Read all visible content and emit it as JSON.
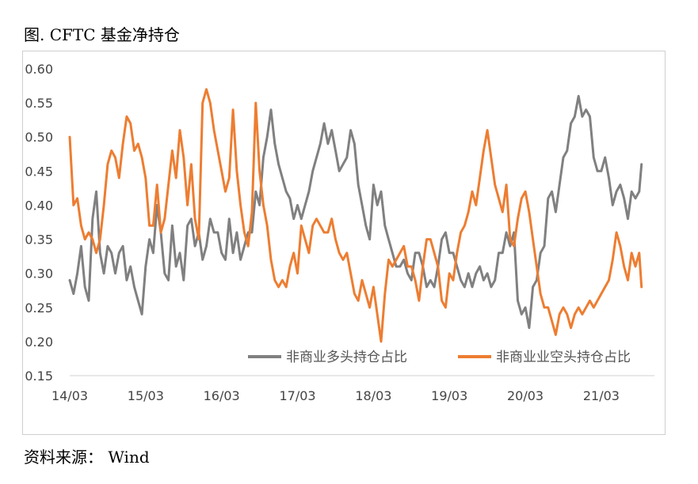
{
  "figure_title": "图. CFTC 基金净持仓",
  "source": "资料来源：  Wind",
  "chart_data": {
    "type": "line",
    "title": "",
    "xlabel": "",
    "ylabel": "",
    "ylim": [
      0.15,
      0.6
    ],
    "xlim": [
      14.0,
      21.7
    ],
    "yticks": [
      "0.60",
      "0.55",
      "0.50",
      "0.45",
      "0.40",
      "0.35",
      "0.30",
      "0.25",
      "0.20",
      "0.15"
    ],
    "xticks": [
      {
        "v": 14.0,
        "label": "14/03"
      },
      {
        "v": 15.0,
        "label": "15/03"
      },
      {
        "v": 16.0,
        "label": "16/03"
      },
      {
        "v": 17.0,
        "label": "17/03"
      },
      {
        "v": 18.0,
        "label": "18/03"
      },
      {
        "v": 19.0,
        "label": "19/03"
      },
      {
        "v": 20.0,
        "label": "20/03"
      },
      {
        "v": 21.0,
        "label": "21/03"
      }
    ],
    "grid": false,
    "legend_position": "bottom-right",
    "series": [
      {
        "name": "非商业多头持仓占比",
        "color": "#808080",
        "points": [
          [
            14.0,
            0.29
          ],
          [
            14.05,
            0.27
          ],
          [
            14.1,
            0.3
          ],
          [
            14.15,
            0.34
          ],
          [
            14.2,
            0.28
          ],
          [
            14.25,
            0.26
          ],
          [
            14.3,
            0.38
          ],
          [
            14.35,
            0.42
          ],
          [
            14.4,
            0.33
          ],
          [
            14.45,
            0.3
          ],
          [
            14.5,
            0.34
          ],
          [
            14.55,
            0.33
          ],
          [
            14.6,
            0.3
          ],
          [
            14.65,
            0.33
          ],
          [
            14.7,
            0.34
          ],
          [
            14.75,
            0.29
          ],
          [
            14.8,
            0.31
          ],
          [
            14.85,
            0.28
          ],
          [
            14.9,
            0.26
          ],
          [
            14.95,
            0.24
          ],
          [
            15.0,
            0.31
          ],
          [
            15.05,
            0.35
          ],
          [
            15.1,
            0.33
          ],
          [
            15.15,
            0.4
          ],
          [
            15.2,
            0.36
          ],
          [
            15.25,
            0.3
          ],
          [
            15.3,
            0.29
          ],
          [
            15.35,
            0.37
          ],
          [
            15.4,
            0.31
          ],
          [
            15.45,
            0.33
          ],
          [
            15.5,
            0.29
          ],
          [
            15.55,
            0.37
          ],
          [
            15.6,
            0.38
          ],
          [
            15.65,
            0.34
          ],
          [
            15.7,
            0.36
          ],
          [
            15.75,
            0.32
          ],
          [
            15.8,
            0.34
          ],
          [
            15.85,
            0.38
          ],
          [
            15.9,
            0.36
          ],
          [
            15.95,
            0.36
          ],
          [
            16.0,
            0.33
          ],
          [
            16.05,
            0.32
          ],
          [
            16.1,
            0.38
          ],
          [
            16.15,
            0.33
          ],
          [
            16.2,
            0.36
          ],
          [
            16.25,
            0.32
          ],
          [
            16.3,
            0.34
          ],
          [
            16.35,
            0.36
          ],
          [
            16.4,
            0.36
          ],
          [
            16.45,
            0.42
          ],
          [
            16.5,
            0.4
          ],
          [
            16.55,
            0.47
          ],
          [
            16.6,
            0.5
          ],
          [
            16.65,
            0.54
          ],
          [
            16.7,
            0.49
          ],
          [
            16.75,
            0.46
          ],
          [
            16.8,
            0.44
          ],
          [
            16.85,
            0.42
          ],
          [
            16.9,
            0.41
          ],
          [
            16.95,
            0.38
          ],
          [
            17.0,
            0.4
          ],
          [
            17.05,
            0.38
          ],
          [
            17.1,
            0.4
          ],
          [
            17.15,
            0.42
          ],
          [
            17.2,
            0.45
          ],
          [
            17.25,
            0.47
          ],
          [
            17.3,
            0.49
          ],
          [
            17.35,
            0.52
          ],
          [
            17.4,
            0.49
          ],
          [
            17.45,
            0.51
          ],
          [
            17.5,
            0.48
          ],
          [
            17.55,
            0.45
          ],
          [
            17.6,
            0.46
          ],
          [
            17.65,
            0.47
          ],
          [
            17.7,
            0.51
          ],
          [
            17.75,
            0.49
          ],
          [
            17.8,
            0.43
          ],
          [
            17.85,
            0.4
          ],
          [
            17.9,
            0.37
          ],
          [
            17.95,
            0.35
          ],
          [
            18.0,
            0.43
          ],
          [
            18.05,
            0.4
          ],
          [
            18.1,
            0.42
          ],
          [
            18.15,
            0.37
          ],
          [
            18.2,
            0.35
          ],
          [
            18.25,
            0.33
          ],
          [
            18.3,
            0.31
          ],
          [
            18.35,
            0.31
          ],
          [
            18.4,
            0.32
          ],
          [
            18.45,
            0.3
          ],
          [
            18.5,
            0.29
          ],
          [
            18.55,
            0.33
          ],
          [
            18.6,
            0.33
          ],
          [
            18.65,
            0.31
          ],
          [
            18.7,
            0.28
          ],
          [
            18.75,
            0.29
          ],
          [
            18.8,
            0.28
          ],
          [
            18.85,
            0.31
          ],
          [
            18.9,
            0.35
          ],
          [
            18.95,
            0.36
          ],
          [
            19.0,
            0.33
          ],
          [
            19.05,
            0.33
          ],
          [
            19.1,
            0.31
          ],
          [
            19.15,
            0.29
          ],
          [
            19.2,
            0.28
          ],
          [
            19.25,
            0.3
          ],
          [
            19.3,
            0.28
          ],
          [
            19.35,
            0.3
          ],
          [
            19.4,
            0.31
          ],
          [
            19.45,
            0.29
          ],
          [
            19.5,
            0.3
          ],
          [
            19.55,
            0.28
          ],
          [
            19.6,
            0.29
          ],
          [
            19.65,
            0.33
          ],
          [
            19.7,
            0.33
          ],
          [
            19.75,
            0.36
          ],
          [
            19.8,
            0.34
          ],
          [
            19.85,
            0.36
          ],
          [
            19.9,
            0.26
          ],
          [
            19.95,
            0.24
          ],
          [
            20.0,
            0.25
          ],
          [
            20.05,
            0.22
          ],
          [
            20.1,
            0.28
          ],
          [
            20.15,
            0.29
          ],
          [
            20.2,
            0.33
          ],
          [
            20.25,
            0.34
          ],
          [
            20.3,
            0.41
          ],
          [
            20.35,
            0.42
          ],
          [
            20.4,
            0.39
          ],
          [
            20.45,
            0.43
          ],
          [
            20.5,
            0.47
          ],
          [
            20.55,
            0.48
          ],
          [
            20.6,
            0.52
          ],
          [
            20.65,
            0.53
          ],
          [
            20.7,
            0.56
          ],
          [
            20.75,
            0.53
          ],
          [
            20.8,
            0.54
          ],
          [
            20.85,
            0.53
          ],
          [
            20.9,
            0.47
          ],
          [
            20.95,
            0.45
          ],
          [
            21.0,
            0.45
          ],
          [
            21.05,
            0.47
          ],
          [
            21.1,
            0.44
          ],
          [
            21.15,
            0.4
          ],
          [
            21.2,
            0.42
          ],
          [
            21.25,
            0.43
          ],
          [
            21.3,
            0.41
          ],
          [
            21.35,
            0.38
          ],
          [
            21.4,
            0.42
          ],
          [
            21.45,
            0.41
          ],
          [
            21.5,
            0.42
          ],
          [
            21.53,
            0.46
          ]
        ]
      },
      {
        "name": "非商业业空头持仓占比",
        "color": "#ED7D31",
        "points": [
          [
            14.0,
            0.5
          ],
          [
            14.05,
            0.4
          ],
          [
            14.1,
            0.41
          ],
          [
            14.15,
            0.37
          ],
          [
            14.2,
            0.35
          ],
          [
            14.25,
            0.36
          ],
          [
            14.3,
            0.35
          ],
          [
            14.35,
            0.33
          ],
          [
            14.4,
            0.35
          ],
          [
            14.45,
            0.4
          ],
          [
            14.5,
            0.46
          ],
          [
            14.55,
            0.48
          ],
          [
            14.6,
            0.47
          ],
          [
            14.65,
            0.44
          ],
          [
            14.7,
            0.49
          ],
          [
            14.75,
            0.53
          ],
          [
            14.8,
            0.52
          ],
          [
            14.85,
            0.48
          ],
          [
            14.9,
            0.49
          ],
          [
            14.95,
            0.47
          ],
          [
            15.0,
            0.44
          ],
          [
            15.05,
            0.37
          ],
          [
            15.1,
            0.37
          ],
          [
            15.15,
            0.43
          ],
          [
            15.2,
            0.36
          ],
          [
            15.25,
            0.38
          ],
          [
            15.3,
            0.43
          ],
          [
            15.35,
            0.48
          ],
          [
            15.4,
            0.44
          ],
          [
            15.45,
            0.51
          ],
          [
            15.5,
            0.47
          ],
          [
            15.55,
            0.4
          ],
          [
            15.6,
            0.46
          ],
          [
            15.65,
            0.38
          ],
          [
            15.7,
            0.35
          ],
          [
            15.75,
            0.55
          ],
          [
            15.8,
            0.57
          ],
          [
            15.85,
            0.55
          ],
          [
            15.9,
            0.51
          ],
          [
            15.95,
            0.48
          ],
          [
            16.0,
            0.45
          ],
          [
            16.05,
            0.42
          ],
          [
            16.1,
            0.44
          ],
          [
            16.15,
            0.54
          ],
          [
            16.2,
            0.45
          ],
          [
            16.25,
            0.4
          ],
          [
            16.3,
            0.36
          ],
          [
            16.35,
            0.34
          ],
          [
            16.4,
            0.39
          ],
          [
            16.45,
            0.55
          ],
          [
            16.5,
            0.45
          ],
          [
            16.55,
            0.4
          ],
          [
            16.6,
            0.37
          ],
          [
            16.65,
            0.32
          ],
          [
            16.7,
            0.29
          ],
          [
            16.75,
            0.28
          ],
          [
            16.8,
            0.29
          ],
          [
            16.85,
            0.28
          ],
          [
            16.9,
            0.31
          ],
          [
            16.95,
            0.33
          ],
          [
            17.0,
            0.3
          ],
          [
            17.05,
            0.37
          ],
          [
            17.1,
            0.35
          ],
          [
            17.15,
            0.33
          ],
          [
            17.2,
            0.37
          ],
          [
            17.25,
            0.38
          ],
          [
            17.3,
            0.37
          ],
          [
            17.35,
            0.36
          ],
          [
            17.4,
            0.36
          ],
          [
            17.45,
            0.38
          ],
          [
            17.5,
            0.35
          ],
          [
            17.55,
            0.33
          ],
          [
            17.6,
            0.32
          ],
          [
            17.65,
            0.33
          ],
          [
            17.7,
            0.3
          ],
          [
            17.75,
            0.27
          ],
          [
            17.8,
            0.26
          ],
          [
            17.85,
            0.29
          ],
          [
            17.9,
            0.27
          ],
          [
            17.95,
            0.25
          ],
          [
            18.0,
            0.28
          ],
          [
            18.05,
            0.24
          ],
          [
            18.1,
            0.2
          ],
          [
            18.15,
            0.27
          ],
          [
            18.2,
            0.32
          ],
          [
            18.25,
            0.31
          ],
          [
            18.3,
            0.32
          ],
          [
            18.35,
            0.33
          ],
          [
            18.4,
            0.34
          ],
          [
            18.45,
            0.31
          ],
          [
            18.5,
            0.31
          ],
          [
            18.55,
            0.29
          ],
          [
            18.6,
            0.26
          ],
          [
            18.65,
            0.31
          ],
          [
            18.7,
            0.35
          ],
          [
            18.75,
            0.35
          ],
          [
            18.8,
            0.33
          ],
          [
            18.85,
            0.31
          ],
          [
            18.9,
            0.26
          ],
          [
            18.95,
            0.25
          ],
          [
            19.0,
            0.3
          ],
          [
            19.05,
            0.29
          ],
          [
            19.1,
            0.33
          ],
          [
            19.15,
            0.36
          ],
          [
            19.2,
            0.37
          ],
          [
            19.25,
            0.39
          ],
          [
            19.3,
            0.42
          ],
          [
            19.35,
            0.4
          ],
          [
            19.4,
            0.44
          ],
          [
            19.45,
            0.48
          ],
          [
            19.5,
            0.51
          ],
          [
            19.55,
            0.47
          ],
          [
            19.6,
            0.43
          ],
          [
            19.65,
            0.41
          ],
          [
            19.7,
            0.39
          ],
          [
            19.75,
            0.43
          ],
          [
            19.8,
            0.35
          ],
          [
            19.85,
            0.34
          ],
          [
            19.9,
            0.38
          ],
          [
            19.95,
            0.41
          ],
          [
            20.0,
            0.42
          ],
          [
            20.05,
            0.39
          ],
          [
            20.1,
            0.35
          ],
          [
            20.15,
            0.31
          ],
          [
            20.2,
            0.27
          ],
          [
            20.25,
            0.25
          ],
          [
            20.3,
            0.25
          ],
          [
            20.35,
            0.23
          ],
          [
            20.4,
            0.21
          ],
          [
            20.45,
            0.24
          ],
          [
            20.5,
            0.25
          ],
          [
            20.55,
            0.24
          ],
          [
            20.6,
            0.22
          ],
          [
            20.65,
            0.24
          ],
          [
            20.7,
            0.25
          ],
          [
            20.75,
            0.24
          ],
          [
            20.8,
            0.25
          ],
          [
            20.85,
            0.26
          ],
          [
            20.9,
            0.25
          ],
          [
            20.95,
            0.26
          ],
          [
            21.0,
            0.27
          ],
          [
            21.05,
            0.28
          ],
          [
            21.1,
            0.29
          ],
          [
            21.15,
            0.32
          ],
          [
            21.2,
            0.36
          ],
          [
            21.25,
            0.34
          ],
          [
            21.3,
            0.31
          ],
          [
            21.35,
            0.29
          ],
          [
            21.4,
            0.33
          ],
          [
            21.45,
            0.31
          ],
          [
            21.5,
            0.33
          ],
          [
            21.53,
            0.28
          ]
        ]
      }
    ]
  }
}
